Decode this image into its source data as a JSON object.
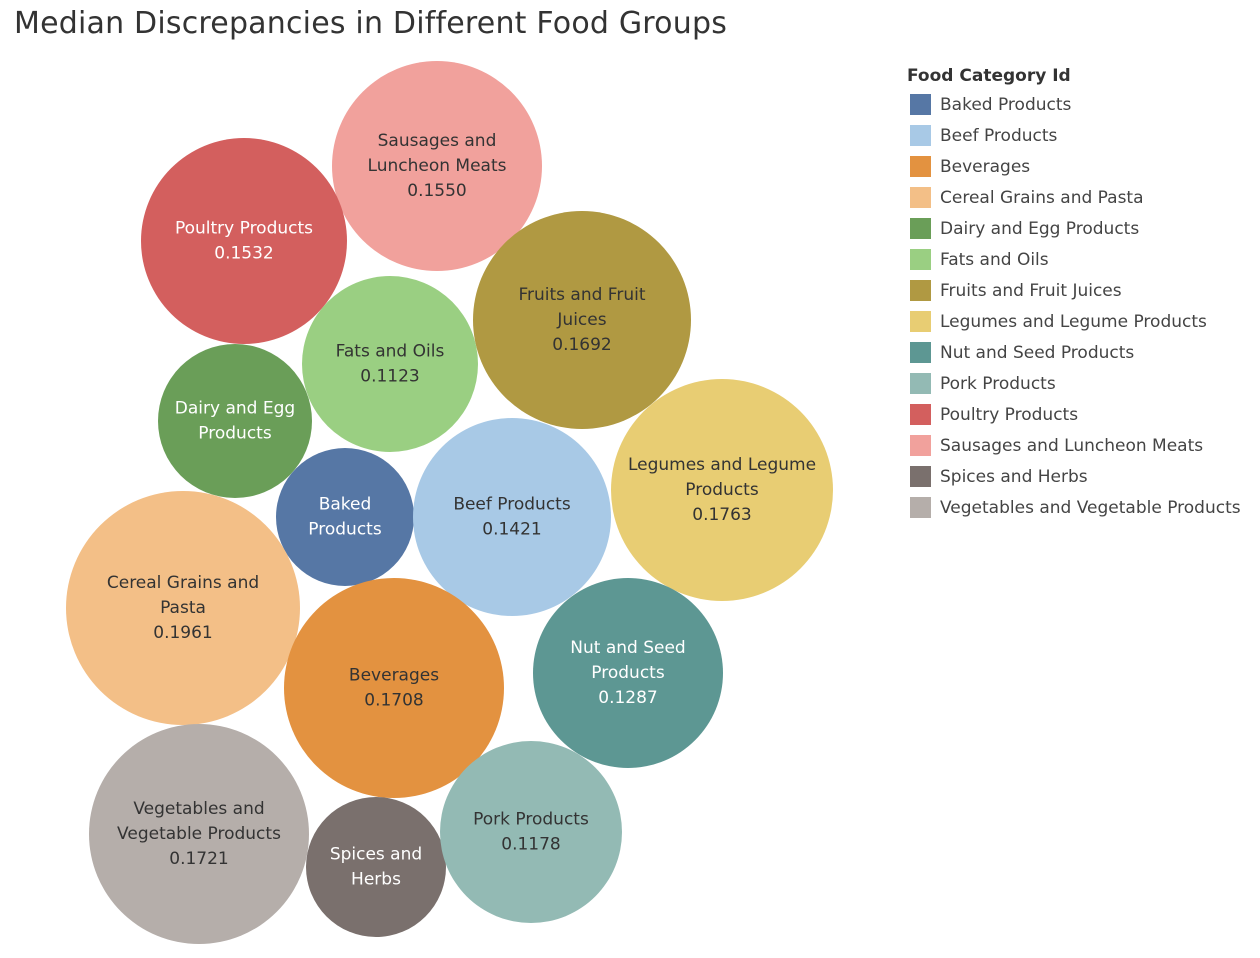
{
  "chart_data": {
    "type": "bubble",
    "title": "Median Discrepancies in Different Food Groups",
    "legend": {
      "title": "Food Category Id",
      "placement": "right"
    },
    "items": [
      {
        "category": "Sausages and Luncheon Meats",
        "label_lines": [
          "Sausages and",
          "Luncheon Meats"
        ],
        "value": "0.1550",
        "color": "#F1A19C",
        "text_color": "#333333"
      },
      {
        "category": "Poultry Products",
        "label_lines": [
          "Poultry Products"
        ],
        "value": "0.1532",
        "color": "#D35F5E",
        "text_color": "#ffffff"
      },
      {
        "category": "Fruits and Fruit Juices",
        "label_lines": [
          "Fruits and Fruit",
          "Juices"
        ],
        "value": "0.1692",
        "color": "#B09942",
        "text_color": "#333333"
      },
      {
        "category": "Fats and Oils",
        "label_lines": [
          "Fats and Oils"
        ],
        "value": "0.1123",
        "color": "#9ACF82",
        "text_color": "#333333"
      },
      {
        "category": "Dairy and Egg Products",
        "label_lines": [
          "Dairy and Egg",
          "Products"
        ],
        "value": "",
        "color": "#6A9E58",
        "text_color": "#ffffff"
      },
      {
        "category": "Legumes and Legume Products",
        "label_lines": [
          "Legumes and Legume",
          "Products"
        ],
        "value": "0.1763",
        "color": "#E8CD73",
        "text_color": "#333333"
      },
      {
        "category": "Baked Products",
        "label_lines": [
          "Baked",
          "Products"
        ],
        "value": "",
        "color": "#5677A5",
        "text_color": "#ffffff"
      },
      {
        "category": "Beef Products",
        "label_lines": [
          "Beef Products"
        ],
        "value": "0.1421",
        "color": "#A8C9E6",
        "text_color": "#333333"
      },
      {
        "category": "Cereal Grains and Pasta",
        "label_lines": [
          "Cereal Grains and",
          "Pasta"
        ],
        "value": "0.1961",
        "color": "#F3BF87",
        "text_color": "#333333"
      },
      {
        "category": "Beverages",
        "label_lines": [
          "Beverages"
        ],
        "value": "0.1708",
        "color": "#E39240",
        "text_color": "#333333"
      },
      {
        "category": "Nut and Seed Products",
        "label_lines": [
          "Nut and Seed",
          "Products"
        ],
        "value": "0.1287",
        "color": "#5D9793",
        "text_color": "#ffffff"
      },
      {
        "category": "Vegetables and Vegetable Products",
        "label_lines": [
          "Vegetables and",
          "Vegetable Products"
        ],
        "value": "0.1721",
        "color": "#B5AEAA",
        "text_color": "#333333"
      },
      {
        "category": "Spices and Herbs",
        "label_lines": [
          "Spices and",
          "Herbs"
        ],
        "value": "",
        "color": "#7A706D",
        "text_color": "#ffffff"
      },
      {
        "category": "Pork Products",
        "label_lines": [
          "Pork Products"
        ],
        "value": "0.1178",
        "color": "#93BAB4",
        "text_color": "#333333"
      }
    ],
    "legend_entries": [
      {
        "label": "Baked Products",
        "color": "#5677A5"
      },
      {
        "label": "Beef Products",
        "color": "#A8C9E6"
      },
      {
        "label": "Beverages",
        "color": "#E39240"
      },
      {
        "label": "Cereal Grains and Pasta",
        "color": "#F3BF87"
      },
      {
        "label": "Dairy and Egg Products",
        "color": "#6A9E58"
      },
      {
        "label": "Fats and Oils",
        "color": "#9ACF82"
      },
      {
        "label": "Fruits and Fruit Juices",
        "color": "#B09942"
      },
      {
        "label": "Legumes and Legume Products",
        "color": "#E8CD73"
      },
      {
        "label": "Nut and Seed Products",
        "color": "#5D9793"
      },
      {
        "label": "Pork Products",
        "color": "#93BAB4"
      },
      {
        "label": "Poultry Products",
        "color": "#D35F5E"
      },
      {
        "label": "Sausages and Luncheon Meats",
        "color": "#F1A19C"
      },
      {
        "label": "Spices and Herbs",
        "color": "#7A706D"
      },
      {
        "label": "Vegetables and Vegetable Products",
        "color": "#B5AEAA"
      }
    ]
  }
}
